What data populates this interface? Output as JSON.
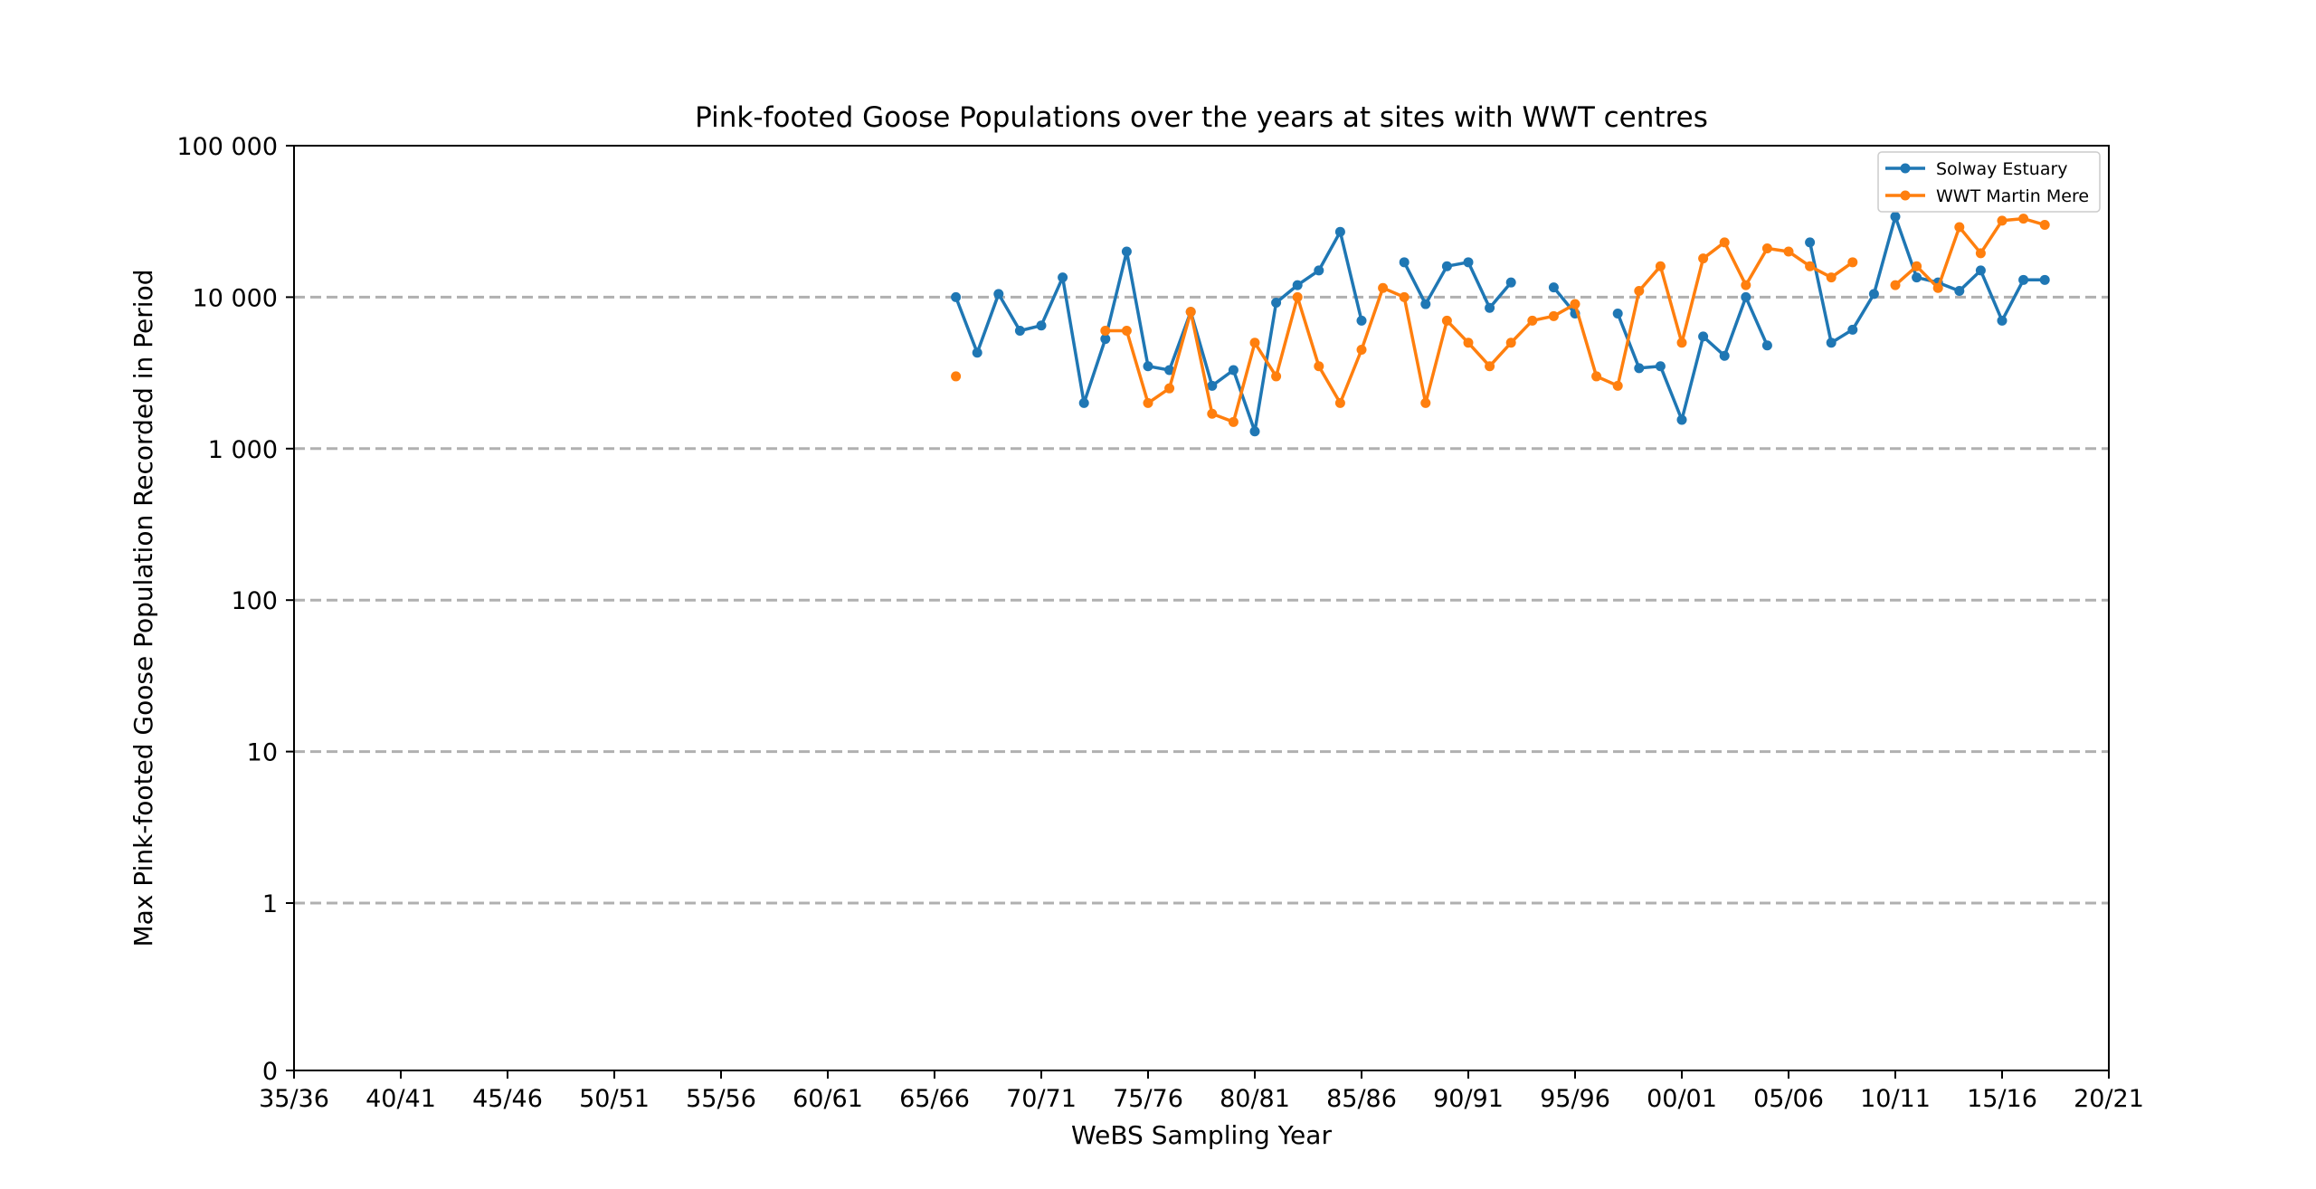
{
  "chart_data": {
    "type": "line",
    "title": "Pink-footed Goose Populations over the years at sites with WWT centres",
    "xlabel": "WeBS Sampling Year",
    "ylabel": "Max Pink-footed Goose Population Recorded in Period",
    "x_ticks": [
      "35/36",
      "40/41",
      "45/46",
      "50/51",
      "55/56",
      "60/61",
      "65/66",
      "70/71",
      "75/76",
      "80/81",
      "85/86",
      "90/91",
      "95/96",
      "00/01",
      "05/06",
      "10/11",
      "15/16",
      "20/21"
    ],
    "y_ticks": [
      "0",
      "1",
      "10",
      "100",
      "1 000",
      "10 000",
      "100 000"
    ],
    "y_scale": "log (with 0 floor)",
    "ylim": [
      0,
      100000
    ],
    "xlim": [
      "35/36",
      "20/21"
    ],
    "grid": "horizontal dashed",
    "legend_position": "top-right",
    "colors": {
      "Solway Estuary": "#1f77b4",
      "WWT Martin Mere": "#ff7f0e",
      "grid": "#b0b0b0"
    },
    "series": [
      {
        "name": "Solway Estuary",
        "x": [
          "66/67",
          "67/68",
          "68/69",
          "69/70",
          "70/71",
          "71/72",
          "72/73",
          "73/74",
          "74/75",
          "75/76",
          "76/77",
          "77/78",
          "78/79",
          "79/80",
          "80/81",
          "81/82",
          "82/83",
          "83/84",
          "84/85",
          "85/86",
          "86/87",
          "87/88",
          "88/89",
          "89/90",
          "90/91",
          "91/92",
          "92/93",
          "93/94",
          "94/95",
          "95/96",
          "96/97",
          "97/98",
          "98/99",
          "99/00",
          "00/01",
          "01/02",
          "02/03",
          "03/04",
          "04/05",
          "05/06",
          "06/07",
          "07/08",
          "08/09",
          "09/10",
          "10/11",
          "11/12",
          "12/13",
          "13/14",
          "14/15",
          "15/16",
          "16/17",
          "17/18"
        ],
        "values": [
          10000,
          4300,
          10500,
          6000,
          6500,
          13500,
          2000,
          5300,
          20000,
          3500,
          3300,
          8000,
          2600,
          3300,
          1300,
          9200,
          12000,
          15000,
          27000,
          7000,
          null,
          17000,
          9000,
          16000,
          17000,
          8500,
          12500,
          null,
          11600,
          7800,
          null,
          7800,
          3400,
          3500,
          1550,
          5500,
          4100,
          10000,
          4800,
          null,
          23000,
          5000,
          6100,
          10500,
          34000,
          13500,
          12500,
          11000,
          15000,
          7000,
          13000,
          13000
        ]
      },
      {
        "name": "WWT Martin Mere",
        "x": [
          "66/67",
          "67/68",
          "68/69",
          "69/70",
          "70/71",
          "71/72",
          "72/73",
          "73/74",
          "74/75",
          "75/76",
          "76/77",
          "77/78",
          "78/79",
          "79/80",
          "80/81",
          "81/82",
          "82/83",
          "83/84",
          "84/85",
          "85/86",
          "86/87",
          "87/88",
          "88/89",
          "89/90",
          "90/91",
          "91/92",
          "92/93",
          "93/94",
          "94/95",
          "95/96",
          "96/97",
          "97/98",
          "98/99",
          "99/00",
          "00/01",
          "01/02",
          "02/03",
          "03/04",
          "04/05",
          "05/06",
          "06/07",
          "07/08",
          "08/09",
          "09/10",
          "10/11",
          "11/12",
          "12/13",
          "13/14",
          "14/15",
          "15/16",
          "16/17",
          "17/18"
        ],
        "values": [
          3000,
          null,
          null,
          null,
          null,
          null,
          null,
          6000,
          6000,
          2000,
          2500,
          8000,
          1700,
          1500,
          5000,
          3000,
          10000,
          3500,
          2000,
          4500,
          11500,
          10000,
          2000,
          7000,
          5000,
          3500,
          5000,
          7000,
          7500,
          9000,
          3000,
          2600,
          11000,
          16000,
          5000,
          18000,
          23000,
          12000,
          21000,
          20000,
          16000,
          13500,
          17000,
          null,
          12000,
          16000,
          11500,
          29000,
          19500,
          32000,
          33000,
          30000
        ]
      }
    ]
  }
}
